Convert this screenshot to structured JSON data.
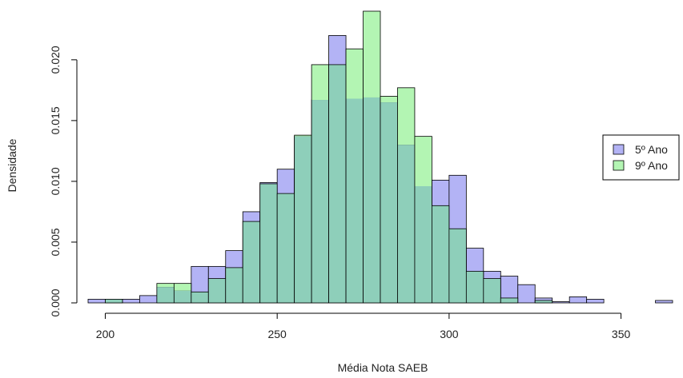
{
  "chart_data": {
    "type": "bar",
    "subtype": "overlaid-histogram",
    "xlabel": "Média Nota SAEB",
    "ylabel": "Densidade",
    "xlim": [
      195,
      365
    ],
    "ylim": [
      0,
      0.024
    ],
    "x_ticks": [
      "200",
      "250",
      "300",
      "350"
    ],
    "x_tick_values": [
      200,
      250,
      300,
      350
    ],
    "y_ticks": [
      "0.000",
      "0.005",
      "0.010",
      "0.015",
      "0.020"
    ],
    "y_tick_values": [
      0,
      0.005,
      0.01,
      0.015,
      0.02
    ],
    "bin_width": 5,
    "grid": false,
    "legend": {
      "placement": "right",
      "entries": [
        {
          "label": "5º Ano",
          "color": "#b3b3f5"
        },
        {
          "label": "9º Ano",
          "color": "#b3f5b3"
        }
      ]
    },
    "overlap_color": "#8ecfba",
    "series": [
      {
        "name": "5º Ano",
        "color": "#b3b3f5",
        "bins": [
          [
            195,
            0.0003
          ],
          [
            200,
            0.0003
          ],
          [
            205,
            0.0003
          ],
          [
            210,
            0.0006
          ],
          [
            215,
            0.0013
          ],
          [
            220,
            0.001
          ],
          [
            225,
            0.003
          ],
          [
            230,
            0.003
          ],
          [
            235,
            0.0043
          ],
          [
            240,
            0.0075
          ],
          [
            245,
            0.0099
          ],
          [
            250,
            0.011
          ],
          [
            255,
            0.0137
          ],
          [
            260,
            0.0167
          ],
          [
            265,
            0.022
          ],
          [
            270,
            0.0168
          ],
          [
            275,
            0.0169
          ],
          [
            280,
            0.0165
          ],
          [
            285,
            0.013
          ],
          [
            290,
            0.0096
          ],
          [
            295,
            0.0101
          ],
          [
            300,
            0.0105
          ],
          [
            305,
            0.0045
          ],
          [
            310,
            0.0026
          ],
          [
            315,
            0.0022
          ],
          [
            320,
            0.0015
          ],
          [
            325,
            0.0004
          ],
          [
            330,
            0.0001
          ],
          [
            335,
            0.0005
          ],
          [
            340,
            0.0003
          ],
          [
            345,
            0
          ],
          [
            350,
            0
          ],
          [
            355,
            0
          ],
          [
            360,
            0.0002
          ]
        ]
      },
      {
        "name": "9º Ano",
        "color": "#b3f5b3",
        "bins": [
          [
            195,
            0
          ],
          [
            200,
            0.0003
          ],
          [
            205,
            0
          ],
          [
            210,
            0
          ],
          [
            215,
            0.0016
          ],
          [
            220,
            0.0016
          ],
          [
            225,
            0.0009
          ],
          [
            230,
            0.002
          ],
          [
            235,
            0.0029
          ],
          [
            240,
            0.0067
          ],
          [
            245,
            0.0098
          ],
          [
            250,
            0.009
          ],
          [
            255,
            0.0138
          ],
          [
            260,
            0.0196
          ],
          [
            265,
            0.0196
          ],
          [
            270,
            0.0209
          ],
          [
            275,
            0.024
          ],
          [
            280,
            0.017
          ],
          [
            285,
            0.0177
          ],
          [
            290,
            0.0137
          ],
          [
            295,
            0.008
          ],
          [
            300,
            0.0061
          ],
          [
            305,
            0.0026
          ],
          [
            310,
            0.002
          ],
          [
            315,
            0.0004
          ],
          [
            320,
            0
          ],
          [
            325,
            0.0002
          ],
          [
            330,
            0
          ],
          [
            335,
            0
          ],
          [
            340,
            0
          ],
          [
            345,
            0
          ],
          [
            350,
            0
          ],
          [
            355,
            0
          ],
          [
            360,
            0
          ]
        ]
      }
    ]
  }
}
